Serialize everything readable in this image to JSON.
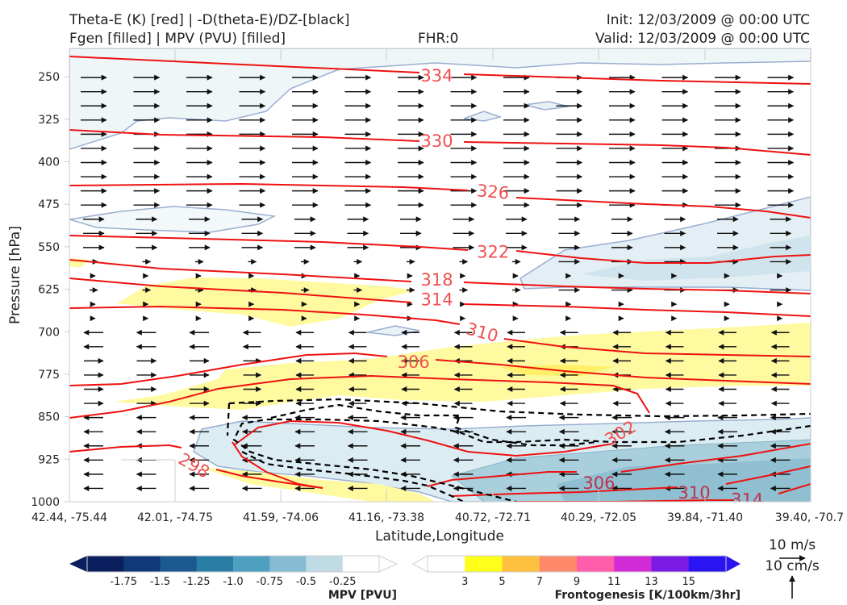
{
  "header": {
    "left_line1": "Theta-E (K) [red] | -D(theta-E)/DZ-[black]",
    "left_line2": "Fgen [filled] | MPV (PVU) [filled]",
    "center": "FHR:0",
    "right_line1": "Init: 12/03/2009 @ 00:00 UTC",
    "right_line2": "Valid: 12/03/2009 @ 00:00 UTC"
  },
  "chart_data": {
    "type": "cross-section",
    "xlabel": "Latitude,Longitude",
    "ylabel": "Pressure [hPa]",
    "x_ticks": [
      "42.44, -75.44",
      "42.01, -74.75",
      "41.59, -74.06",
      "41.16, -73.38",
      "40.72, -72.71",
      "40.29, -72.05",
      "39.84, -71.40",
      "39.40, -70.7"
    ],
    "y_ticks": [
      250,
      325,
      400,
      475,
      550,
      625,
      700,
      775,
      850,
      925,
      1000
    ],
    "ylim": [
      1000,
      200
    ],
    "y_scale": "linear, inverted",
    "theta_e_labels": [
      {
        "value": "334",
        "x": 3.47,
        "p": 247
      },
      {
        "value": "330",
        "x": 3.47,
        "p": 362
      },
      {
        "value": "326",
        "x": 4.0,
        "p": 452
      },
      {
        "value": "322",
        "x": 4.0,
        "p": 558
      },
      {
        "value": "318",
        "x": 3.47,
        "p": 607
      },
      {
        "value": "314",
        "x": 3.47,
        "p": 642
      },
      {
        "value": "310",
        "x": 3.9,
        "p": 700
      },
      {
        "value": "306",
        "x": 3.25,
        "p": 752
      },
      {
        "value": "302",
        "x": 5.2,
        "p": 878
      },
      {
        "value": "298",
        "x": 1.18,
        "p": 935
      },
      {
        "value": "306",
        "x": 5.0,
        "p": 966
      },
      {
        "value": "310",
        "x": 5.9,
        "p": 983
      },
      {
        "value": "314",
        "x": 6.4,
        "p": 995
      }
    ],
    "mpv_colorbar": {
      "label": "MPV [PVU]",
      "ticks": [
        "-1.75",
        "-1.5",
        "-1.25",
        "-1.0",
        "-0.75",
        "-0.5",
        "-0.25"
      ],
      "colors": [
        "#0b1f5e",
        "#10397a",
        "#1b5a8f",
        "#2a7ea6",
        "#4ea0c1",
        "#86bcd3",
        "#bfdbe6",
        "#ffffff"
      ]
    },
    "fgen_colorbar": {
      "label": "Frontogenesis [K/100km/3hr]",
      "ticks": [
        "3",
        "5",
        "7",
        "9",
        "11",
        "13",
        "15"
      ],
      "colors": [
        "#ffffff",
        "#ffff1a",
        "#ffc040",
        "#ff8a6a",
        "#ff5cab",
        "#d02bd6",
        "#7a1be6",
        "#2a14f2"
      ]
    },
    "wind_scale": {
      "horizontal": "10 m/s",
      "vertical": "10 cm/s"
    },
    "contour_colors": {
      "theta_e": "#ee1111",
      "dtheta_dz": "#000000",
      "mpv_fill": "#d8ebf1",
      "fgen_fill": "#fffaa0"
    },
    "grid": false
  }
}
